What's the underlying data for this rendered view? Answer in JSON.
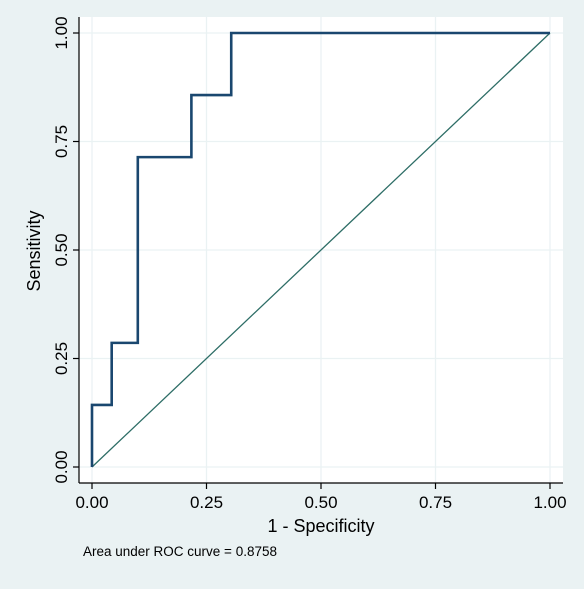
{
  "chart_data": {
    "type": "line",
    "xlabel": "1 - Specificity",
    "ylabel": "Sensitivity",
    "xlim": [
      0,
      1
    ],
    "ylim": [
      0,
      1
    ],
    "x_ticks": [
      0,
      0.25,
      0.5,
      0.75,
      1
    ],
    "y_ticks": [
      0,
      0.25,
      0.5,
      0.75,
      1
    ],
    "x_tick_labels": [
      "0.00",
      "0.25",
      "0.50",
      "0.75",
      "1.00"
    ],
    "y_tick_labels": [
      "0.00",
      "0.25",
      "0.50",
      "0.75",
      "1.00"
    ],
    "grid": true,
    "annotation": "Area under ROC curve = 0.8758",
    "series": [
      {
        "kind": "roc-step",
        "color": "#1a476f",
        "x": [
          0,
          0,
          0.043,
          0.043,
          0.1,
          0.1,
          0.217,
          0.217,
          0.304,
          0.304,
          1
        ],
        "y": [
          0,
          0.143,
          0.143,
          0.286,
          0.286,
          0.714,
          0.714,
          0.857,
          0.857,
          1,
          1
        ]
      },
      {
        "kind": "reference-line",
        "color": "#2d6d66",
        "x": [
          0,
          1
        ],
        "y": [
          0,
          1
        ]
      }
    ]
  },
  "colors": {
    "background": "#eaf2f3",
    "plot_area": "#ffffff",
    "grid": "#eaf2f3",
    "axis": "#000000"
  }
}
